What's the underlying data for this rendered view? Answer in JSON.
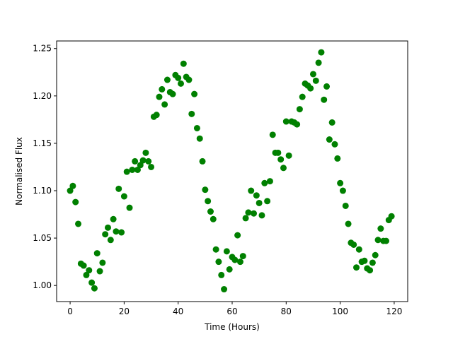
{
  "chart_data": {
    "type": "scatter",
    "title": "",
    "xlabel": "Time (Hours)",
    "ylabel": "Normalised Flux",
    "xlim": [
      -5,
      125
    ],
    "ylim": [
      0.983,
      1.258
    ],
    "xticks": [
      0,
      20,
      40,
      60,
      80,
      100,
      120
    ],
    "yticks": [
      1.0,
      1.05,
      1.1,
      1.15,
      1.2,
      1.25
    ],
    "xtick_labels": [
      "0",
      "20",
      "40",
      "60",
      "80",
      "100",
      "120"
    ],
    "ytick_labels": [
      "1.00",
      "1.05",
      "1.10",
      "1.15",
      "1.20",
      "1.25"
    ],
    "grid": false,
    "marker_color": "#008000",
    "series": [
      {
        "x": [
          0,
          1,
          2,
          3,
          4,
          5,
          6,
          7,
          8,
          9,
          10,
          11,
          12,
          13,
          14,
          15,
          16,
          17,
          18,
          19,
          20,
          21,
          22,
          23,
          24,
          25,
          26,
          27,
          28,
          29,
          30,
          31,
          32,
          33,
          34,
          35,
          36,
          37,
          38,
          39,
          40,
          41,
          42,
          43,
          44,
          45,
          46,
          47,
          48,
          49,
          50,
          51,
          52,
          53,
          54,
          55,
          56,
          57,
          58,
          59,
          60,
          61,
          62,
          63,
          64,
          65,
          66,
          67,
          68,
          69,
          70,
          71,
          72,
          73,
          74,
          75,
          76,
          77,
          78,
          79,
          80,
          81,
          82,
          83,
          84,
          85,
          86,
          87,
          88,
          89,
          90,
          91,
          92,
          93,
          94,
          95,
          96,
          97,
          98,
          99,
          100,
          101,
          102,
          103,
          104,
          105,
          106,
          107,
          108,
          109,
          110,
          111,
          112,
          113,
          114,
          115,
          116,
          117,
          118,
          119
        ],
        "y": [
          1.1,
          1.105,
          1.088,
          1.065,
          1.023,
          1.021,
          1.011,
          1.016,
          1.003,
          0.997,
          1.034,
          1.015,
          1.024,
          1.054,
          1.061,
          1.048,
          1.07,
          1.057,
          1.102,
          1.056,
          1.094,
          1.12,
          1.082,
          1.122,
          1.131,
          1.122,
          1.127,
          1.132,
          1.14,
          1.131,
          1.125,
          1.178,
          1.18,
          1.199,
          1.207,
          1.191,
          1.217,
          1.204,
          1.202,
          1.222,
          1.219,
          1.213,
          1.234,
          1.22,
          1.217,
          1.181,
          1.202,
          1.166,
          1.155,
          1.131,
          1.101,
          1.089,
          1.078,
          1.07,
          1.038,
          1.025,
          1.011,
          0.996,
          1.036,
          1.017,
          1.03,
          1.027,
          1.053,
          1.025,
          1.031,
          1.071,
          1.077,
          1.1,
          1.076,
          1.095,
          1.087,
          1.074,
          1.108,
          1.089,
          1.11,
          1.159,
          1.14,
          1.14,
          1.133,
          1.124,
          1.173,
          1.137,
          1.173,
          1.172,
          1.17,
          1.186,
          1.199,
          1.213,
          1.211,
          1.208,
          1.223,
          1.216,
          1.235,
          1.246,
          1.196,
          1.21,
          1.154,
          1.172,
          1.149,
          1.134,
          1.108,
          1.1,
          1.084,
          1.065,
          1.045,
          1.043,
          1.019,
          1.038,
          1.025,
          1.026,
          1.018,
          1.016,
          1.024,
          1.032,
          1.048,
          1.06,
          1.047,
          1.047,
          1.069,
          1.073
        ]
      }
    ]
  }
}
